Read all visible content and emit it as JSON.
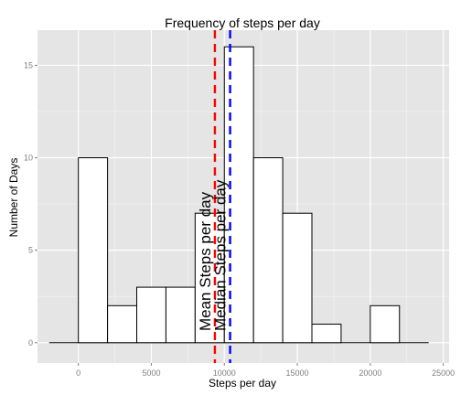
{
  "chart_data": {
    "type": "bar",
    "subtype": "histogram",
    "title": "Frequency of steps per day",
    "xlabel": "Steps per day",
    "ylabel": "Number of Days",
    "xlim": [
      -2800,
      25400
    ],
    "ylim": [
      -1.1,
      16.9
    ],
    "x_ticks": [
      0,
      5000,
      10000,
      15000,
      20000,
      25000
    ],
    "y_ticks": [
      0,
      5,
      10,
      15
    ],
    "bins": [
      {
        "x0": -2000,
        "x1": 0,
        "count": 0
      },
      {
        "x0": 0,
        "x1": 2000,
        "count": 10
      },
      {
        "x0": 2000,
        "x1": 4000,
        "count": 2
      },
      {
        "x0": 4000,
        "x1": 6000,
        "count": 3
      },
      {
        "x0": 6000,
        "x1": 8000,
        "count": 3
      },
      {
        "x0": 8000,
        "x1": 10000,
        "count": 7
      },
      {
        "x0": 10000,
        "x1": 12000,
        "count": 16
      },
      {
        "x0": 12000,
        "x1": 14000,
        "count": 10
      },
      {
        "x0": 14000,
        "x1": 16000,
        "count": 7
      },
      {
        "x0": 16000,
        "x1": 18000,
        "count": 1
      },
      {
        "x0": 18000,
        "x1": 20000,
        "count": 0
      },
      {
        "x0": 20000,
        "x1": 22000,
        "count": 2
      },
      {
        "x0": 22000,
        "x1": 24000,
        "count": 0
      }
    ],
    "reference_lines": [
      {
        "label": "Mean Steps per day",
        "x": 9354,
        "color": "#ff0000"
      },
      {
        "label": "Median Steps per day",
        "x": 10395,
        "color": "#0000ff"
      }
    ],
    "grid": true,
    "colors": {
      "panel": "#e5e5e5",
      "grid_major": "#ffffff",
      "grid_minor": "#f2f2f2",
      "bar_fill": "#ffffff",
      "bar_stroke": "#000000",
      "tick_text": "#7f7f7f"
    }
  }
}
